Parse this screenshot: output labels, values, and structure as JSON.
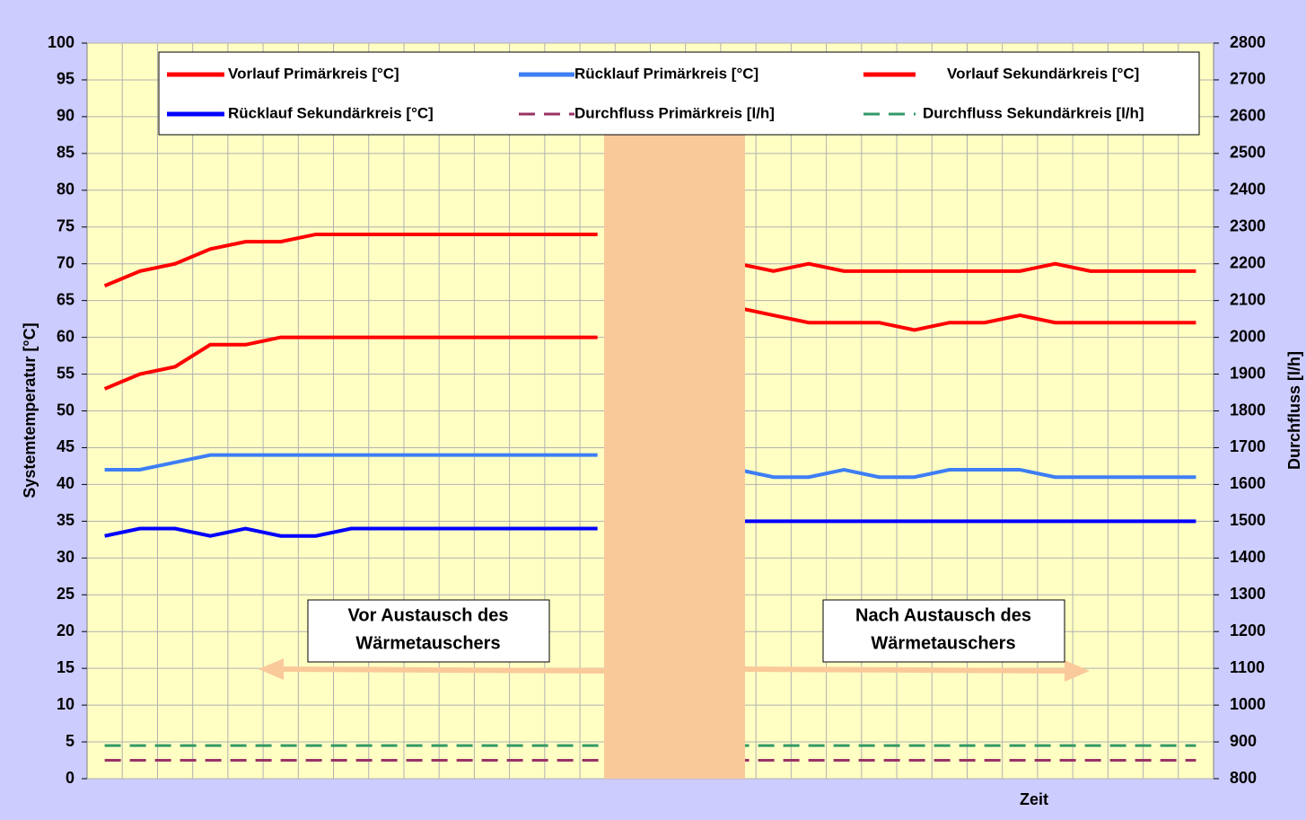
{
  "chart_data": {
    "type": "line",
    "categories": [
      null,
      null,
      null,
      null,
      null,
      null,
      null,
      null,
      null,
      null,
      null,
      null,
      null,
      null,
      null,
      null,
      null,
      null,
      null,
      null,
      null,
      null,
      null,
      null,
      null,
      null,
      null,
      null,
      null,
      null,
      null,
      null
    ],
    "series": [
      {
        "name": "Vorlauf Primärkreis [°C]",
        "color": "#ff0000",
        "dash": false,
        "values": [
          67,
          69,
          70,
          72,
          73,
          73,
          74,
          74,
          74,
          74,
          74,
          74,
          74,
          74,
          74,
          null,
          null,
          null,
          70,
          69,
          70,
          69,
          69,
          69,
          69,
          69,
          69,
          70,
          69,
          69,
          69,
          69
        ]
      },
      {
        "name": "Rücklauf Primärkreis [°C]",
        "color": "#3d7ef5",
        "dash": false,
        "values": [
          42,
          42,
          43,
          44,
          44,
          44,
          44,
          44,
          44,
          44,
          44,
          44,
          44,
          44,
          44,
          null,
          null,
          null,
          42,
          41,
          41,
          42,
          41,
          41,
          42,
          42,
          42,
          41,
          41,
          41,
          41,
          41
        ]
      },
      {
        "name": "Vorlauf Sekundärkreis [°C]",
        "color": "#ff0000",
        "dash": false,
        "values": [
          53,
          55,
          56,
          59,
          59,
          60,
          60,
          60,
          60,
          60,
          60,
          60,
          60,
          60,
          60,
          null,
          null,
          null,
          64,
          63,
          62,
          62,
          62,
          61,
          62,
          62,
          63,
          62,
          62,
          62,
          62,
          62
        ]
      },
      {
        "name": "Rücklauf Sekundärkreis [°C]",
        "color": "#0000ff",
        "dash": false,
        "values": [
          33,
          34,
          34,
          33,
          34,
          33,
          33,
          34,
          34,
          34,
          34,
          34,
          34,
          34,
          34,
          null,
          null,
          null,
          35,
          35,
          35,
          35,
          35,
          35,
          35,
          35,
          35,
          35,
          35,
          35,
          35,
          35
        ]
      },
      {
        "name": "Durchfluss Primärkreis [l/h]",
        "color": "#993366",
        "dash": true,
        "axis": "y2",
        "values": [
          850,
          850,
          850,
          850,
          850,
          850,
          850,
          850,
          850,
          850,
          850,
          850,
          850,
          850,
          850,
          850,
          850,
          850,
          850,
          850,
          850,
          850,
          850,
          850,
          850,
          850,
          850,
          850,
          850,
          850,
          850,
          850
        ]
      },
      {
        "name": "Durchfluss Sekundärkreis [l/h]",
        "color": "#339966",
        "dash": true,
        "axis": "y2",
        "values": [
          890,
          890,
          890,
          890,
          890,
          890,
          890,
          890,
          890,
          890,
          890,
          890,
          890,
          890,
          890,
          890,
          890,
          890,
          890,
          890,
          890,
          890,
          890,
          890,
          890,
          890,
          890,
          890,
          890,
          890,
          890,
          890
        ]
      }
    ],
    "y_label": "Systemtemperatur [°C]",
    "y2_label": "Durchfluss [l/h]",
    "x_label": "Zeit",
    "annotations": [
      [
        "Vor Austausch des",
        "Wärmetauschers"
      ],
      [
        "Nach Austausch des",
        "Wärmetauschers"
      ]
    ],
    "ylim": [
      0,
      100
    ],
    "yticks": [
      0,
      5,
      10,
      15,
      20,
      25,
      30,
      35,
      40,
      45,
      50,
      55,
      60,
      65,
      70,
      75,
      80,
      85,
      90,
      95,
      100
    ],
    "y2lim": [
      800,
      2800
    ],
    "y2ticks": [
      800,
      900,
      1000,
      1100,
      1200,
      1300,
      1400,
      1500,
      1600,
      1700,
      1800,
      1900,
      2000,
      2100,
      2200,
      2300,
      2400,
      2500,
      2600,
      2700,
      2800
    ],
    "grid": true
  }
}
